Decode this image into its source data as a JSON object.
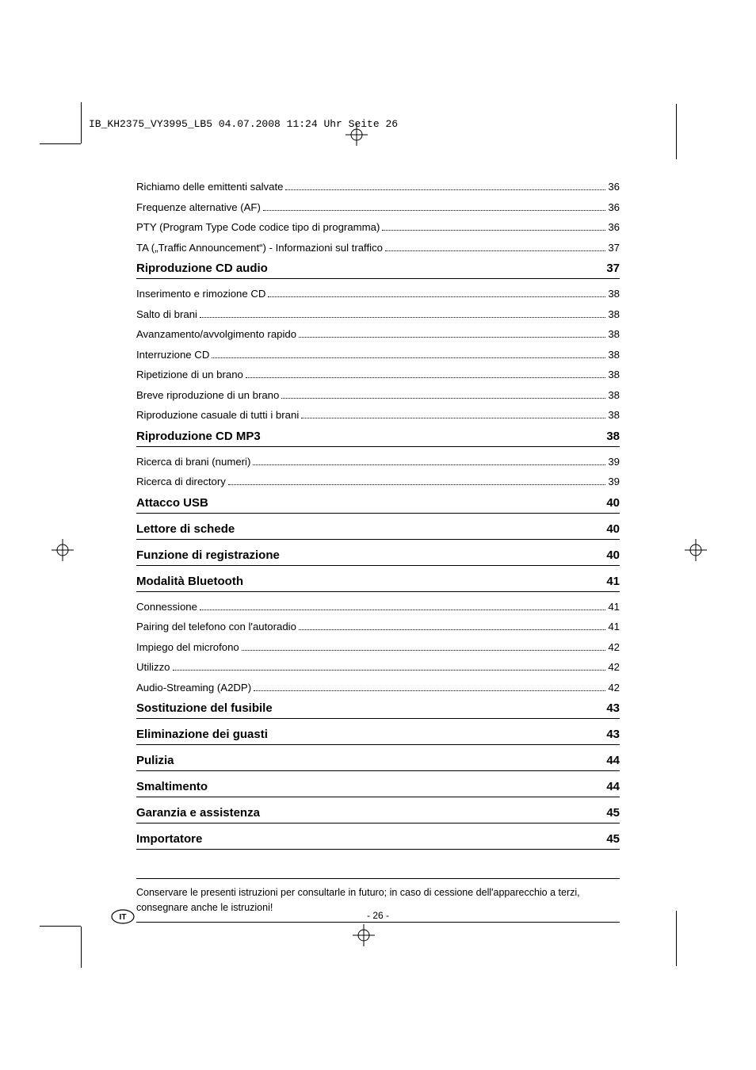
{
  "header_meta": "IB_KH2375_VY3995_LB5  04.07.2008  11:24 Uhr  Seite 26",
  "toc_pre": [
    {
      "label": "Richiamo delle emittenti salvate",
      "page": "36"
    },
    {
      "label": "Frequenze alternative (AF)",
      "page": "36"
    },
    {
      "label": "PTY  (Program Type Code  codice tipo di programma)",
      "page": "36"
    },
    {
      "label": "TA („Traffic Announcement“) - Informazioni sul traffico",
      "page": "37"
    }
  ],
  "sections": [
    {
      "title": "Riproduzione CD audio",
      "page": "37",
      "items": [
        {
          "label": "Inserimento e rimozione CD",
          "page": "38"
        },
        {
          "label": "Salto di brani",
          "page": "38"
        },
        {
          "label": "Avanzamento/avvolgimento rapido",
          "page": "38"
        },
        {
          "label": "Interruzione CD",
          "page": "38"
        },
        {
          "label": "Ripetizione di un brano",
          "page": "38"
        },
        {
          "label": "Breve riproduzione di un brano",
          "page": "38"
        },
        {
          "label": "Riproduzione casuale di tutti i brani",
          "page": "38"
        }
      ]
    },
    {
      "title": "Riproduzione CD MP3",
      "page": "38",
      "items": [
        {
          "label": "Ricerca di brani (numeri)",
          "page": "39"
        },
        {
          "label": "Ricerca di directory",
          "page": "39"
        }
      ]
    },
    {
      "title": "Attacco USB",
      "page": "40",
      "items": []
    },
    {
      "title": "Lettore di schede",
      "page": "40",
      "items": []
    },
    {
      "title": "Funzione di registrazione",
      "page": "40",
      "items": []
    },
    {
      "title": "Modalità Bluetooth",
      "page": "41",
      "items": [
        {
          "label": "Connessione",
          "page": "41"
        },
        {
          "label": "Pairing del telefono con l'autoradio",
          "page": "41"
        },
        {
          "label": "Impiego del microfono",
          "page": "42"
        },
        {
          "label": "Utilizzo",
          "page": "42"
        },
        {
          "label": "Audio-Streaming (A2DP)",
          "page": "42"
        }
      ]
    },
    {
      "title": "Sostituzione del fusibile",
      "page": "43",
      "items": []
    },
    {
      "title": "Eliminazione dei guasti",
      "page": "43",
      "items": []
    },
    {
      "title": "Pulizia",
      "page": "44",
      "items": []
    },
    {
      "title": "Smaltimento",
      "page": "44",
      "items": []
    },
    {
      "title": "Garanzia e assistenza",
      "page": "45",
      "items": []
    },
    {
      "title": "Importatore",
      "page": "45",
      "items": []
    }
  ],
  "note_text": "Conservare le presenti istruzioni per consultarle in futuro; in caso di cessione dell'apparecchio a terzi, consegnare anche le istruzioni!",
  "page_number": "- 26 -",
  "lang_code": "IT",
  "colors": {
    "text": "#000000",
    "background": "#ffffff",
    "rule": "#000000"
  },
  "typography": {
    "body_pt": 13,
    "section_pt": 15,
    "note_pt": 12,
    "mono_pt": 13
  }
}
